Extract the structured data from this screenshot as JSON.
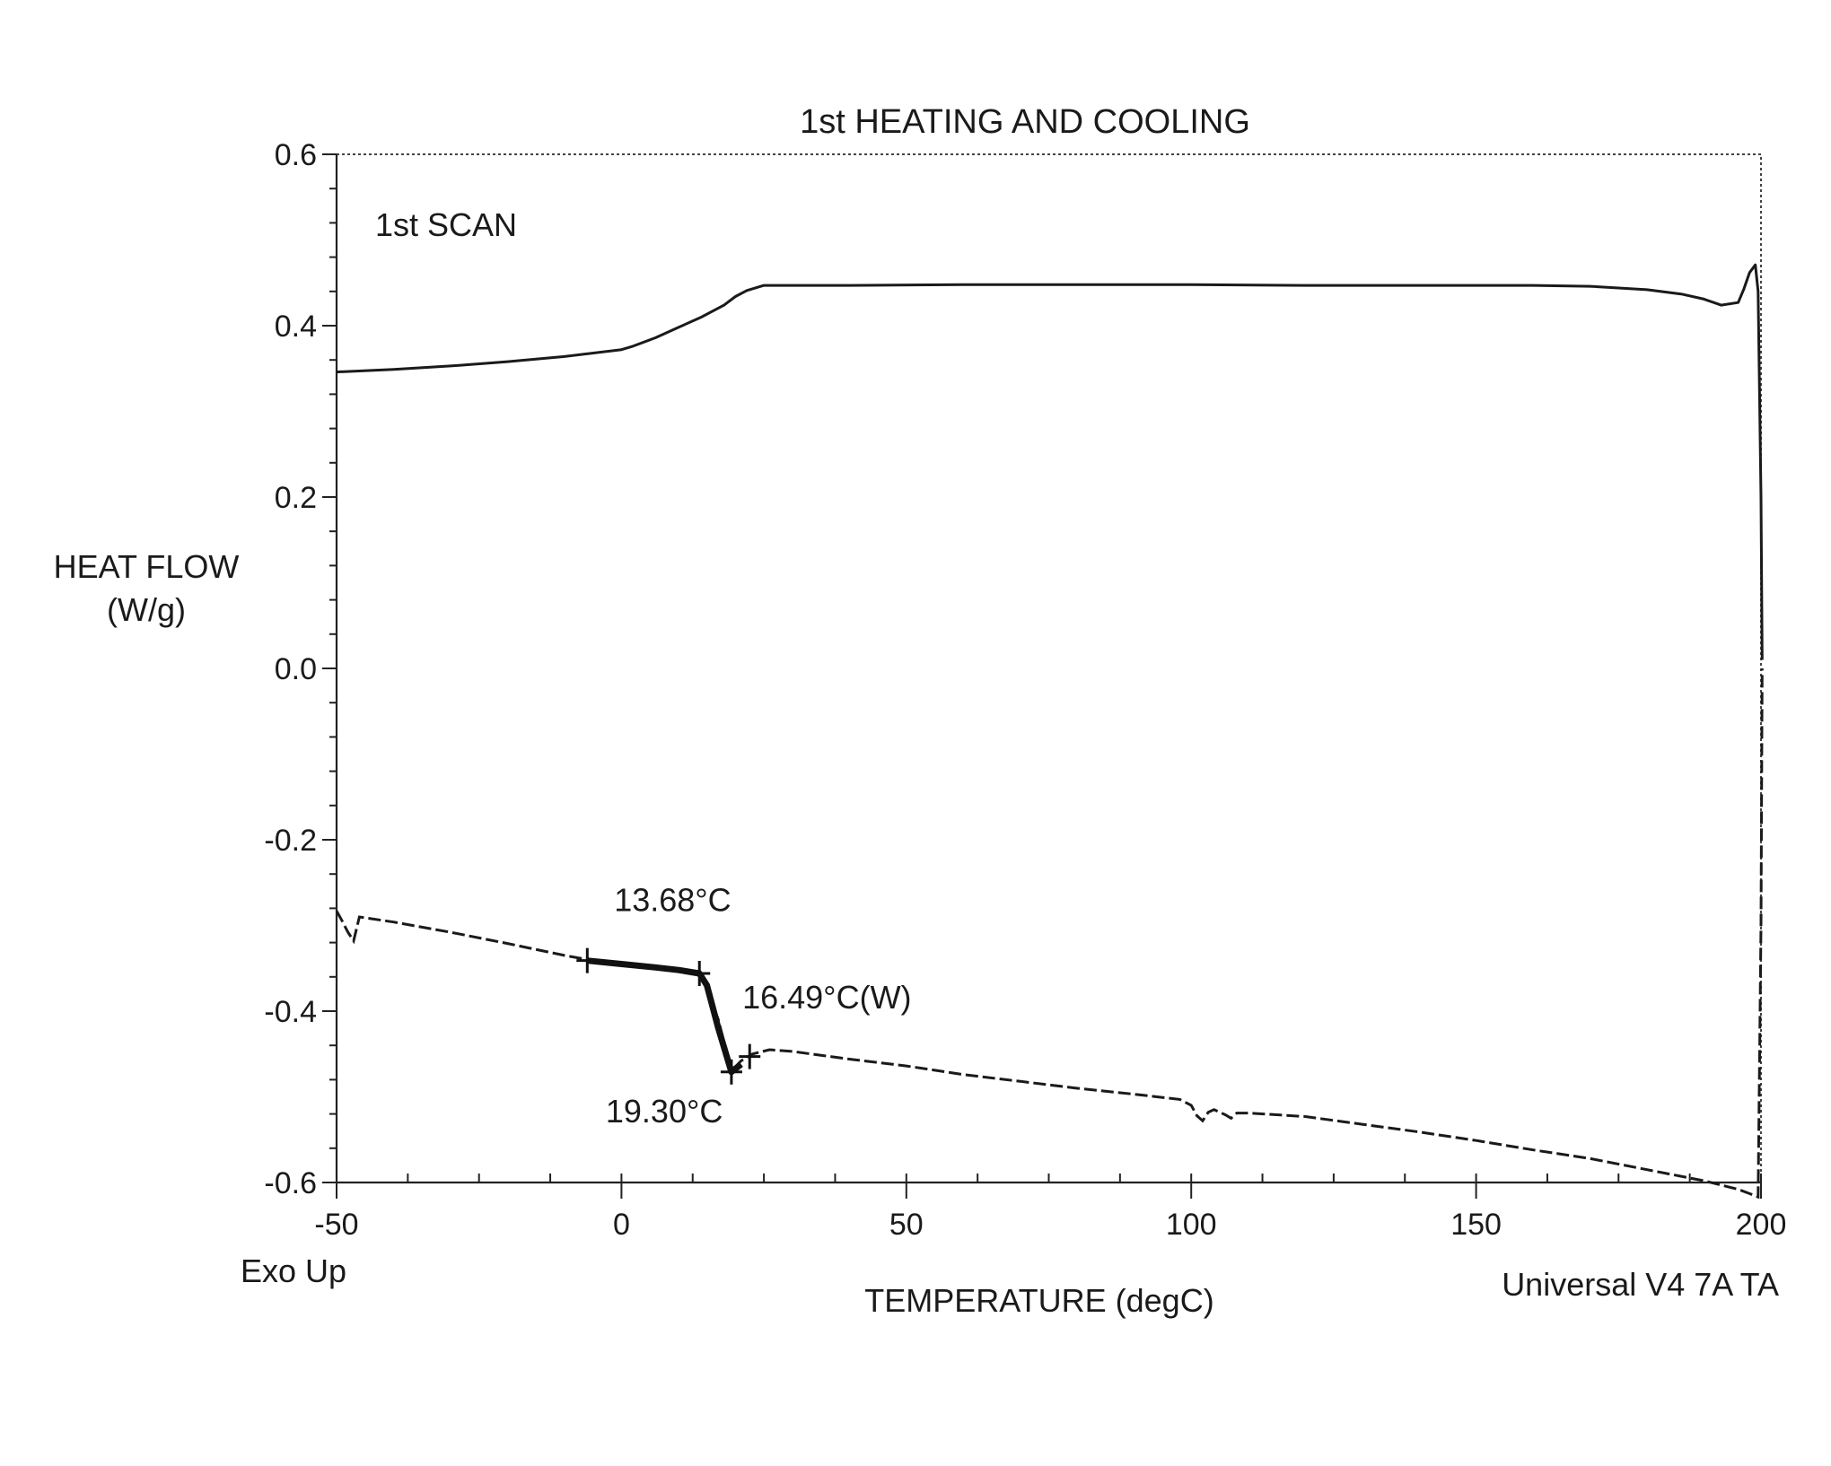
{
  "chart_data": {
    "type": "line",
    "title": "1st HEATING AND COOLING",
    "xlabel": "TEMPERATURE (degC)",
    "ylabel_line1": "HEAT FLOW",
    "ylabel_line2": "(W/g)",
    "xlim": [
      -50,
      200
    ],
    "ylim": [
      -0.6,
      0.6
    ],
    "x_ticks": [
      -50,
      0,
      50,
      100,
      150,
      200
    ],
    "x_tick_labels": [
      "-50",
      "0",
      "50",
      "100",
      "150",
      "200"
    ],
    "y_ticks": [
      0.6,
      0.4,
      0.2,
      0.0,
      -0.2,
      -0.4,
      -0.6
    ],
    "y_tick_labels": [
      "0.6",
      "0.4",
      "0.2",
      "0.0",
      "-0.2",
      "-0.4",
      "-0.6"
    ],
    "grid": false,
    "corner_left_label": "Exo Up",
    "corner_right_label": "Universal V4 7A TA",
    "scan_label": "1st SCAN",
    "series": [
      {
        "style": "solid",
        "x": [
          -50,
          -40,
          -30,
          -20,
          -10,
          0,
          2,
          6,
          10,
          14,
          18,
          20,
          22,
          25,
          40,
          60,
          80,
          100,
          120,
          140,
          160,
          170,
          180,
          186,
          190,
          193,
          196,
          197,
          198,
          199,
          199.5,
          200,
          200.2
        ],
        "y": [
          0.346,
          0.349,
          0.353,
          0.358,
          0.364,
          0.372,
          0.376,
          0.386,
          0.398,
          0.41,
          0.424,
          0.434,
          0.441,
          0.447,
          0.447,
          0.448,
          0.448,
          0.448,
          0.447,
          0.447,
          0.447,
          0.446,
          0.442,
          0.437,
          0.431,
          0.424,
          0.427,
          0.443,
          0.462,
          0.471,
          0.44,
          0.2,
          0.01
        ]
      },
      {
        "style": "dashed",
        "x": [
          -50,
          -49,
          -48,
          -47,
          -46,
          -40,
          -30,
          -20,
          -10,
          -5,
          0,
          5,
          10,
          14,
          17,
          19.3,
          21,
          23,
          26,
          30,
          40,
          50,
          60,
          70,
          80,
          90,
          98,
          100,
          101,
          102,
          103,
          104,
          106,
          107,
          108,
          110,
          120,
          130,
          140,
          150,
          160,
          170,
          180,
          190,
          196,
          198,
          199.5,
          200,
          200.2
        ],
        "y": [
          -0.283,
          -0.295,
          -0.308,
          -0.318,
          -0.29,
          -0.296,
          -0.308,
          -0.321,
          -0.335,
          -0.341,
          -0.345,
          -0.348,
          -0.352,
          -0.357,
          -0.41,
          -0.47,
          -0.458,
          -0.45,
          -0.445,
          -0.447,
          -0.456,
          -0.464,
          -0.474,
          -0.482,
          -0.49,
          -0.497,
          -0.503,
          -0.51,
          -0.522,
          -0.528,
          -0.518,
          -0.515,
          -0.521,
          -0.525,
          -0.519,
          -0.519,
          -0.523,
          -0.532,
          -0.541,
          -0.551,
          -0.562,
          -0.572,
          -0.585,
          -0.598,
          -0.608,
          -0.613,
          -0.617,
          -0.3,
          0.0
        ]
      }
    ],
    "tangent_segment": {
      "x": [
        -6,
        0,
        6,
        10,
        13.68,
        15,
        17,
        19.3,
        21
      ],
      "y": [
        -0.341,
        -0.345,
        -0.349,
        -0.352,
        -0.356,
        -0.37,
        -0.42,
        -0.471,
        -0.462
      ]
    },
    "markers": [
      {
        "x": -6,
        "y": -0.341
      },
      {
        "x": 13.68,
        "y": -0.356
      },
      {
        "x": 19.3,
        "y": -0.471
      },
      {
        "x": 22.5,
        "y": -0.453
      }
    ],
    "annotations": [
      {
        "text": "13.68°C",
        "x": 13.68,
        "y": -0.283
      },
      {
        "text": "16.49°C(W)",
        "x": 16.49,
        "y": -0.397
      },
      {
        "text": "19.30°C",
        "x": 19.3,
        "y": -0.53
      }
    ]
  }
}
